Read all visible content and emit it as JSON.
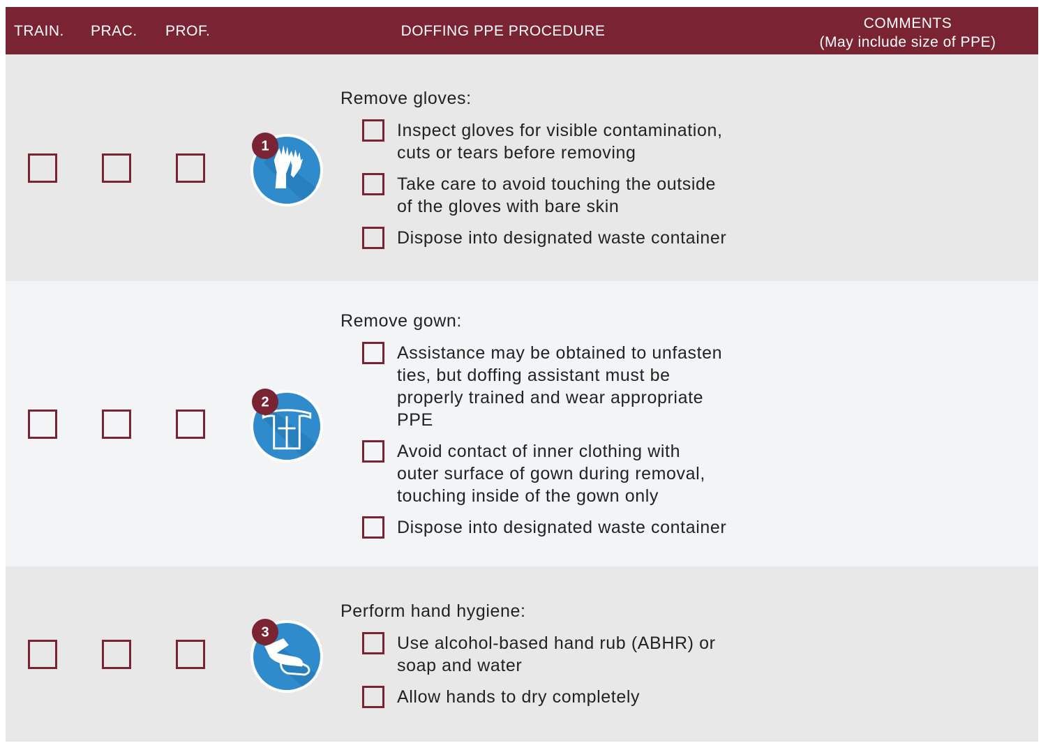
{
  "header": {
    "columns": [
      "TRAIN.",
      "PRAC.",
      "PROF.",
      "DOFFING PPE PROCEDURE"
    ],
    "comments": [
      "COMMENTS",
      "(May include size of PPE)"
    ]
  },
  "steps": [
    {
      "number": "1",
      "heading": "Remove gloves:",
      "items": [
        [
          "Inspect gloves for visible contamination,",
          "cuts or tears before removing"
        ],
        [
          "Take care to avoid touching the outside",
          "of the gloves with bare skin"
        ],
        [
          "Dispose into designated waste container"
        ]
      ]
    },
    {
      "number": "2",
      "heading": "Remove gown:",
      "items": [
        [
          "Assistance may be obtained to unfasten",
          "ties, but doffing assistant must be",
          "properly trained and wear appropriate",
          "PPE"
        ],
        [
          "Avoid contact of inner clothing with",
          "outer surface of gown during removal,",
          "touching inside of the gown only"
        ],
        [
          "Dispose into designated waste container"
        ]
      ]
    },
    {
      "number": "3",
      "heading": "Perform hand hygiene:",
      "items": [
        [
          "Use alcohol-based hand rub (ABHR) or",
          "soap and water"
        ],
        [
          "Allow hands to dry completely"
        ]
      ]
    }
  ]
}
